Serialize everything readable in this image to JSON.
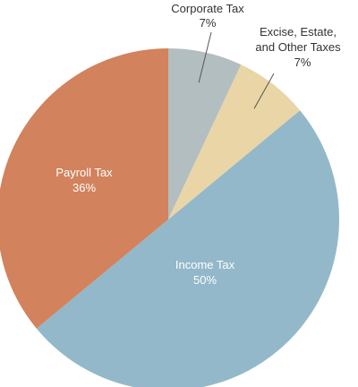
{
  "chart_data": {
    "type": "pie",
    "slices": [
      {
        "label": "Corporate Tax",
        "value": 7,
        "value_label": "7%",
        "color": "#b3bec0"
      },
      {
        "label": "Excise, Estate, and Other Taxes",
        "value": 7,
        "value_label": "7%",
        "color": "#ead5a7"
      },
      {
        "label": "Income Tax",
        "value": 50,
        "value_label": "50%",
        "color": "#93b8c9"
      },
      {
        "label": "Payroll Tax",
        "value": 36,
        "value_label": "36%",
        "color": "#d2825c"
      }
    ]
  }
}
